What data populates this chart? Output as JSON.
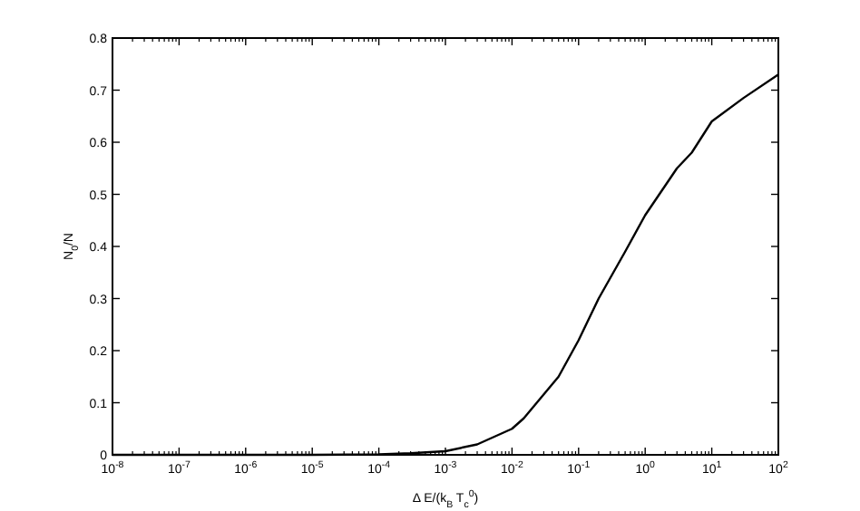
{
  "chart_data": {
    "type": "line",
    "xlabel": "Δ E/(k$_{B}$ T$_{c}$$^{0}$)",
    "ylabel": "N$_{0}$/N",
    "log": "x",
    "xlim": [
      1e-08,
      100
    ],
    "ylim": [
      0,
      0.8
    ],
    "xticks": [
      {
        "value": 1e-08,
        "label": "10$^{-8}$"
      },
      {
        "value": 1e-07,
        "label": "10$^{-7}$"
      },
      {
        "value": 1e-06,
        "label": "10$^{-6}$"
      },
      {
        "value": 1e-05,
        "label": "10$^{-5}$"
      },
      {
        "value": 0.0001,
        "label": "10$^{-4}$"
      },
      {
        "value": 0.001,
        "label": "10$^{-3}$"
      },
      {
        "value": 0.01,
        "label": "10$^{-2}$"
      },
      {
        "value": 0.1,
        "label": "10$^{-1}$"
      },
      {
        "value": 1,
        "label": "10$^{0}$"
      },
      {
        "value": 10,
        "label": "10$^{1}$"
      },
      {
        "value": 100,
        "label": "10$^{2}$"
      }
    ],
    "yticks": [
      0,
      0.1,
      0.2,
      0.3,
      0.4,
      0.5,
      0.6,
      0.7,
      0.8
    ],
    "series": [
      {
        "color": "#000000",
        "x": [
          1e-08,
          1e-06,
          1e-05,
          0.0001,
          0.0003,
          0.001,
          0.003,
          0.01,
          0.015,
          0.05,
          0.1,
          0.2,
          0.5,
          1,
          3,
          5,
          10,
          30,
          100
        ],
        "values": [
          0,
          0,
          0,
          0.001,
          0.003,
          0.007,
          0.02,
          0.05,
          0.07,
          0.15,
          0.22,
          0.3,
          0.39,
          0.46,
          0.55,
          0.58,
          0.64,
          0.685,
          0.73
        ]
      }
    ]
  }
}
